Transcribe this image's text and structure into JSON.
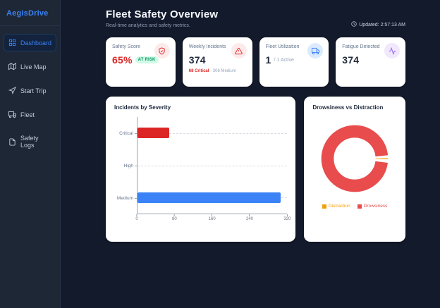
{
  "brand": "AegisDrive",
  "sidebar": {
    "items": [
      {
        "label": "Dashboard",
        "active": true
      },
      {
        "label": "Live Map"
      },
      {
        "label": "Start Trip"
      },
      {
        "label": "Fleet"
      },
      {
        "label": "Safety Logs"
      }
    ]
  },
  "header": {
    "title": "Fleet Safety Overview",
    "subtitle": "Real-time analytics and safety metrics.",
    "updated": "Updated: 2:57:13 AM"
  },
  "stats": [
    {
      "label": "Safety Score",
      "value": "65%",
      "badge": "AT RISK",
      "value_color": "#dc2626",
      "icon": "shield-check",
      "icon_color": "#dc2626",
      "icon_bg": "#fdeaea"
    },
    {
      "label": "Weekly Incidents",
      "value": "374",
      "detail_primary": "68 Critical",
      "detail_secondary": " · 306 Medium",
      "icon": "alert-triangle",
      "icon_color": "#dc2626",
      "icon_bg": "#fdeaea"
    },
    {
      "label": "Fleet Utilization",
      "value": "1",
      "suffix": "/ 1 Active",
      "icon": "truck",
      "icon_color": "#3b82f6",
      "icon_bg": "#dceafe"
    },
    {
      "label": "Fatigue Detected",
      "value": "374",
      "icon": "activity",
      "icon_color": "#8b5cf6",
      "icon_bg": "#f1e8fd"
    }
  ],
  "chart_data": [
    {
      "type": "bar",
      "orientation": "horizontal",
      "title": "Incidents by Severity",
      "categories": [
        "Critical",
        "High",
        "Medium"
      ],
      "values": [
        68,
        0,
        306
      ],
      "colors": [
        "#dc2626",
        "#94a3b8",
        "#3b82f6"
      ],
      "xlim": [
        0,
        320
      ],
      "xticks": [
        0,
        80,
        160,
        240,
        320
      ],
      "grid": "horizontal-dashed",
      "legend": false
    },
    {
      "type": "pie",
      "donut": true,
      "title": "Drowsiness vs Distraction",
      "labels": [
        "Distraction",
        "Drowsiness"
      ],
      "values": [
        8,
        374
      ],
      "colors": [
        "#f59e0b",
        "#e84c4c"
      ],
      "legend_position": "bottom"
    }
  ]
}
